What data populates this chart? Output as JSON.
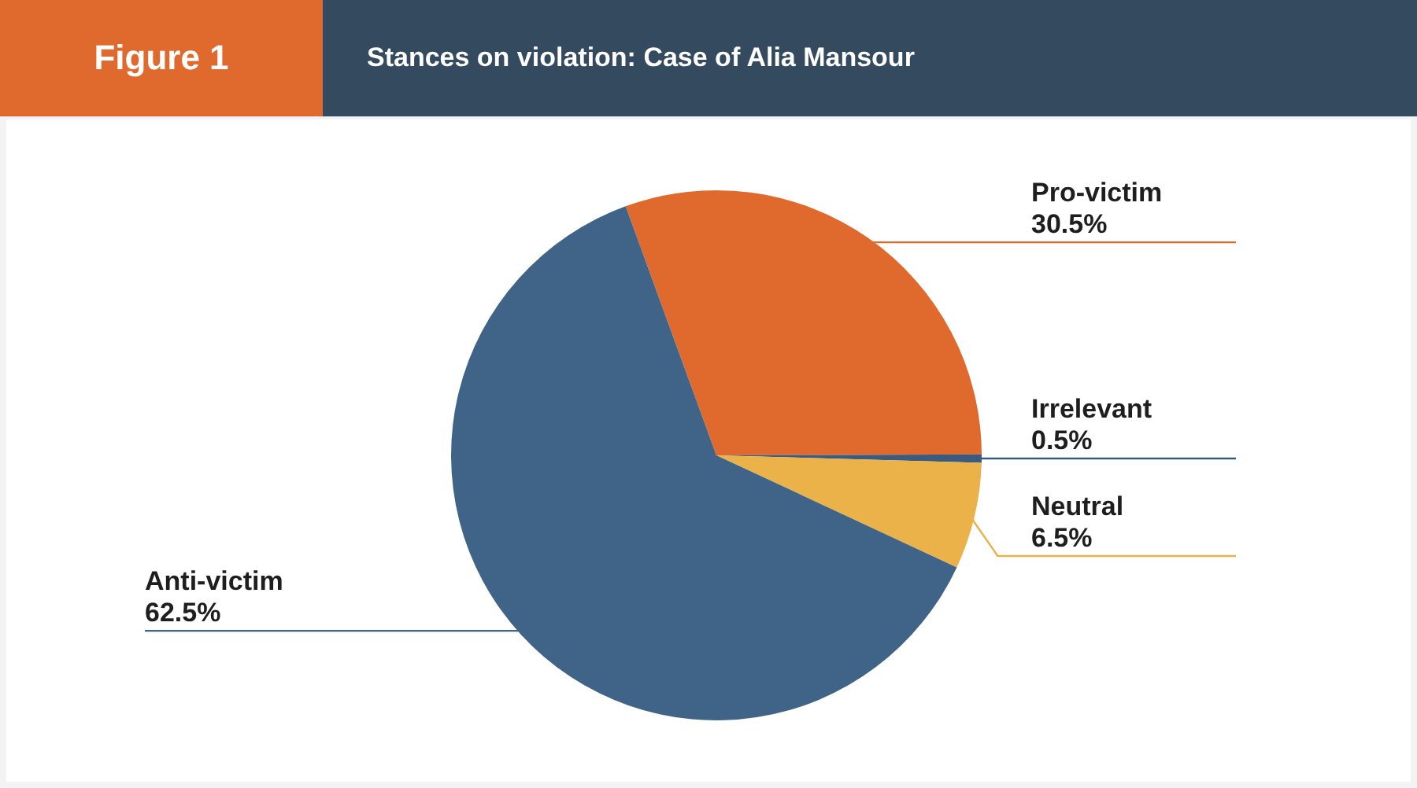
{
  "chart_data": {
    "type": "pie",
    "title": "Stances on violation: Case of Alia Mansour",
    "annotations": [
      "Figure 1"
    ],
    "categories": [
      "Pro-victim",
      "Irrelevant",
      "Neutral",
      "Anti-victim"
    ],
    "values": [
      30.5,
      0.5,
      6.5,
      62.5
    ],
    "value_labels": [
      "30.5%",
      "0.5%",
      "6.5%",
      "62.5%"
    ],
    "colors": [
      "#e06a2e",
      "#3b5a7e",
      "#ecb24a",
      "#406388"
    ],
    "legend": false
  }
}
